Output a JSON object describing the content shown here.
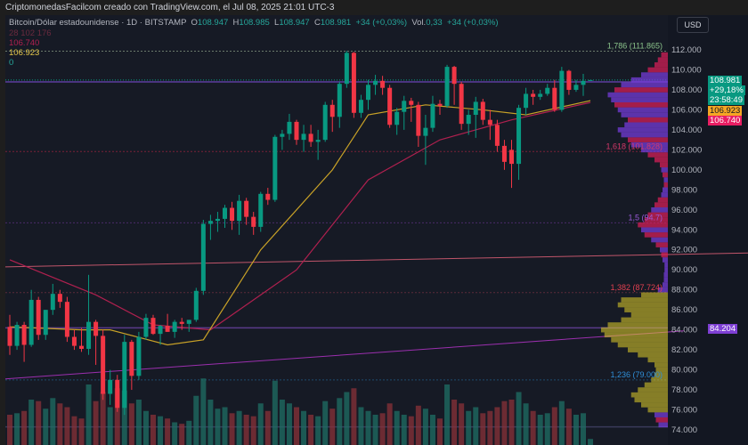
{
  "header": {
    "title": "CriptomonedasFacilcom creado con TradingView.com, el Jul 08, 2025 21:01 UTC-3"
  },
  "legend": {
    "symbol": "Bitcoin/Dólar estadounidense · 1D · BITSTAMP",
    "o_label": "O",
    "o": "108.947",
    "h_label": "H",
    "h": "108.985",
    "l_label": "L",
    "l": "108.947",
    "c_label": "C",
    "c": "108.981",
    "change": "+34 (+0,03%)",
    "vol_label": "Vol.",
    "vol": "0,33",
    "vol_change": "+34 (+0,03%)",
    "ind1": "28  102  176",
    "ma_long_value": "106.740",
    "ma_short_value": "106.923",
    "ind_zero": "0"
  },
  "currency_button": "USD",
  "price_tags": {
    "last": "108.981",
    "change_pct": "+29,18%",
    "countdown": "23:58:49",
    "ma_short": "106.923",
    "ma_long": "106.740",
    "poc": "84.204"
  },
  "colors": {
    "bg": "#161a25",
    "up": "#089981",
    "down": "#f23645",
    "ma_short": "#c9a227",
    "ma_long": "#b0204f",
    "poc": "#7e3fd4",
    "profile_upper": "#7b3fe4",
    "profile_upper_alt": "#e0205a",
    "profile_lower": "#e3d22a"
  },
  "chart_data": {
    "type": "candlestick",
    "title": "",
    "ylim": [
      74,
      112
    ],
    "yticks": [
      "112.000",
      "110.000",
      "108.000",
      "106.000",
      "104.000",
      "102.000",
      "100.000",
      "98.000",
      "96.000",
      "94.000",
      "92.000",
      "90.000",
      "88.000",
      "86.000",
      "84.000",
      "82.000",
      "80.000",
      "78.000",
      "76.000",
      "74.000"
    ],
    "ohlcv": [
      [
        84.3,
        85.5,
        81.5,
        82.4,
        40
      ],
      [
        82.4,
        84.8,
        82.0,
        84.5,
        42
      ],
      [
        84.5,
        84.8,
        80.8,
        82.5,
        45
      ],
      [
        82.5,
        88.0,
        82.3,
        87.0,
        60
      ],
      [
        87.0,
        87.3,
        83.0,
        83.5,
        58
      ],
      [
        83.5,
        86.0,
        83.0,
        86.0,
        48
      ],
      [
        86.0,
        88.6,
        85.5,
        87.6,
        62
      ],
      [
        87.6,
        88.0,
        86.2,
        86.8,
        55
      ],
      [
        86.8,
        87.3,
        82.8,
        83.3,
        50
      ],
      [
        83.3,
        84.0,
        82.0,
        82.4,
        38
      ],
      [
        82.4,
        84.2,
        81.8,
        82.1,
        35
      ],
      [
        82.1,
        89.5,
        81.5,
        84.8,
        80
      ],
      [
        84.8,
        85.0,
        80.5,
        83.4,
        58
      ],
      [
        83.4,
        84.0,
        77.0,
        77.6,
        70
      ],
      [
        77.6,
        80.0,
        76.5,
        79.0,
        50
      ],
      [
        79.0,
        79.5,
        75.8,
        76.2,
        75
      ],
      [
        76.2,
        83.5,
        75.5,
        82.8,
        72
      ],
      [
        82.8,
        83.0,
        78.0,
        79.4,
        55
      ],
      [
        79.4,
        83.8,
        79.0,
        83.3,
        60
      ],
      [
        83.3,
        85.6,
        83.0,
        85.2,
        45
      ],
      [
        85.2,
        85.5,
        83.5,
        83.6,
        40
      ],
      [
        83.6,
        84.5,
        82.5,
        84.4,
        38
      ],
      [
        84.4,
        85.6,
        83.8,
        83.8,
        35
      ],
      [
        83.8,
        85.0,
        83.2,
        84.8,
        30
      ],
      [
        84.8,
        85.2,
        84.0,
        84.6,
        28
      ],
      [
        84.6,
        85.0,
        83.8,
        85.0,
        32
      ],
      [
        85.0,
        88.2,
        84.8,
        87.9,
        65
      ],
      [
        87.9,
        95.0,
        87.5,
        94.6,
        88
      ],
      [
        94.6,
        95.5,
        93.0,
        94.9,
        60
      ],
      [
        94.9,
        95.8,
        93.8,
        95.1,
        48
      ],
      [
        95.1,
        96.5,
        94.2,
        96.2,
        50
      ],
      [
        96.2,
        96.8,
        94.0,
        94.9,
        42
      ],
      [
        94.9,
        97.5,
        93.5,
        96.9,
        45
      ],
      [
        96.9,
        97.2,
        94.5,
        95.3,
        40
      ],
      [
        95.3,
        95.8,
        93.5,
        94.3,
        38
      ],
      [
        94.3,
        97.8,
        93.8,
        97.6,
        55
      ],
      [
        97.6,
        98.2,
        96.5,
        97.0,
        45
      ],
      [
        97.0,
        103.5,
        96.8,
        103.3,
        85
      ],
      [
        103.3,
        104.0,
        102.0,
        103.6,
        60
      ],
      [
        103.6,
        105.6,
        103.0,
        104.8,
        55
      ],
      [
        104.8,
        105.0,
        102.5,
        103.0,
        50
      ],
      [
        103.0,
        104.5,
        101.8,
        103.6,
        45
      ],
      [
        103.6,
        104.5,
        102.3,
        102.8,
        40
      ],
      [
        102.8,
        104.0,
        101.0,
        103.0,
        38
      ],
      [
        103.0,
        106.8,
        102.8,
        106.5,
        58
      ],
      [
        106.5,
        107.0,
        103.8,
        105.3,
        48
      ],
      [
        105.3,
        108.8,
        104.2,
        108.6,
        62
      ],
      [
        108.6,
        111.9,
        108.2,
        111.7,
        70
      ],
      [
        111.7,
        111.8,
        105.2,
        105.7,
        75
      ],
      [
        105.7,
        107.5,
        105.2,
        107.0,
        50
      ],
      [
        107.0,
        109.0,
        106.0,
        108.5,
        45
      ],
      [
        108.5,
        109.5,
        107.5,
        108.9,
        40
      ],
      [
        108.9,
        109.4,
        107.5,
        108.2,
        42
      ],
      [
        108.2,
        108.5,
        104.2,
        104.5,
        55
      ],
      [
        104.5,
        106.2,
        103.5,
        105.8,
        45
      ],
      [
        105.8,
        107.4,
        104.0,
        106.9,
        40
      ],
      [
        106.9,
        107.2,
        104.8,
        106.5,
        38
      ],
      [
        106.5,
        106.8,
        102.3,
        103.4,
        52
      ],
      [
        103.4,
        105.5,
        100.5,
        104.2,
        48
      ],
      [
        104.2,
        107.4,
        103.8,
        106.6,
        40
      ],
      [
        106.6,
        107.0,
        105.5,
        106.4,
        35
      ],
      [
        106.4,
        110.5,
        106.2,
        110.3,
        80
      ],
      [
        110.3,
        110.4,
        106.5,
        108.6,
        60
      ],
      [
        108.6,
        108.8,
        104.0,
        104.6,
        55
      ],
      [
        104.6,
        106.0,
        103.5,
        105.5,
        45
      ],
      [
        105.5,
        107.3,
        103.2,
        106.8,
        50
      ],
      [
        106.8,
        107.1,
        104.5,
        105.0,
        42
      ],
      [
        105.0,
        106.0,
        103.0,
        104.5,
        45
      ],
      [
        104.5,
        105.0,
        101.8,
        102.4,
        50
      ],
      [
        102.4,
        103.0,
        100.0,
        100.8,
        58
      ],
      [
        102.0,
        103.0,
        98.2,
        100.6,
        60
      ],
      [
        100.6,
        106.5,
        99.0,
        106.2,
        70
      ],
      [
        106.2,
        108.2,
        105.5,
        107.6,
        55
      ],
      [
        107.6,
        108.0,
        106.5,
        107.3,
        45
      ],
      [
        107.3,
        108.0,
        107.0,
        107.6,
        40
      ],
      [
        107.6,
        108.6,
        107.4,
        108.2,
        42
      ],
      [
        108.2,
        109.0,
        105.8,
        106.0,
        50
      ],
      [
        106.0,
        110.3,
        105.8,
        109.9,
        58
      ],
      [
        109.9,
        110.0,
        107.5,
        108.0,
        48
      ],
      [
        108.0,
        109.0,
        107.8,
        108.5,
        40
      ],
      [
        108.5,
        109.6,
        107.4,
        108.9,
        42
      ],
      [
        108.947,
        108.985,
        108.947,
        108.981,
        8
      ]
    ],
    "ma_short": [
      [
        0,
        84.3
      ],
      [
        10,
        84.0
      ],
      [
        14,
        84.0
      ],
      [
        22,
        82.5
      ],
      [
        27,
        83.0
      ],
      [
        35,
        92.0
      ],
      [
        45,
        100.0
      ],
      [
        50,
        105.5
      ],
      [
        58,
        106.5
      ],
      [
        66,
        106.0
      ],
      [
        72,
        105.5
      ],
      [
        81,
        106.923
      ]
    ],
    "ma_long": [
      [
        0,
        91.0
      ],
      [
        12,
        87.5
      ],
      [
        20,
        84.5
      ],
      [
        28,
        84.0
      ],
      [
        40,
        90.0
      ],
      [
        50,
        99.0
      ],
      [
        60,
        103.0
      ],
      [
        70,
        105.0
      ],
      [
        81,
        106.74
      ]
    ],
    "hlines": [
      {
        "price": 111.865,
        "label": "1,786 (111.865)",
        "color": "#6b7a6b",
        "labelColor": "#8bc48b"
      },
      {
        "price": 108.8,
        "label": "",
        "color": "#5b3c9e",
        "labelColor": ""
      },
      {
        "price": 101.828,
        "label": "1,618 (101.828)",
        "color": "#7a2038",
        "labelColor": "#d6386a"
      },
      {
        "price": 94.7,
        "label": "1,5 (94.7)",
        "color": "#4a2a6a",
        "labelColor": "#9a5ad8"
      },
      {
        "price": 87.724,
        "label": "1,382 (87.724)",
        "color": "#5a2a3a",
        "labelColor": "#e04050"
      },
      {
        "price": 84.204,
        "label": "",
        "color": "#5a3a8a",
        "labelColor": ""
      },
      {
        "price": 79.0,
        "label": "1,236 (79.000)",
        "color": "#1f4a6e",
        "labelColor": "#2f8fd8"
      },
      {
        "price": 74.3,
        "label": "",
        "color": "#3a3a5a",
        "labelColor": ""
      }
    ],
    "trendlines": [
      {
        "from": [
          0,
          90.3
        ],
        "to": [
          104,
          91.7
        ],
        "color": "#c0556a"
      },
      {
        "from": [
          0,
          79.1
        ],
        "to": [
          94,
          83.9
        ],
        "color": "#9b2fae"
      }
    ],
    "volume_profile": [
      [
        74.5,
        14,
        "u"
      ],
      [
        75.0,
        18,
        "r"
      ],
      [
        75.5,
        20,
        "u"
      ],
      [
        76.0,
        30,
        "l"
      ],
      [
        76.5,
        40,
        "l"
      ],
      [
        77.0,
        50,
        "l"
      ],
      [
        77.5,
        55,
        "l"
      ],
      [
        78.0,
        45,
        "l"
      ],
      [
        78.5,
        35,
        "l"
      ],
      [
        79.0,
        25,
        "l"
      ],
      [
        79.5,
        20,
        "l"
      ],
      [
        80.0,
        18,
        "l"
      ],
      [
        80.5,
        20,
        "l"
      ],
      [
        81.0,
        30,
        "l"
      ],
      [
        81.5,
        45,
        "l"
      ],
      [
        82.0,
        60,
        "l"
      ],
      [
        82.5,
        75,
        "l"
      ],
      [
        83.0,
        85,
        "l"
      ],
      [
        83.5,
        95,
        "l"
      ],
      [
        84.0,
        100,
        "l"
      ],
      [
        84.5,
        90,
        "l"
      ],
      [
        85.0,
        70,
        "l"
      ],
      [
        85.5,
        55,
        "l"
      ],
      [
        86.0,
        65,
        "l"
      ],
      [
        86.5,
        75,
        "l"
      ],
      [
        87.0,
        70,
        "l"
      ],
      [
        87.5,
        40,
        "l"
      ],
      [
        88.0,
        15,
        "u"
      ],
      [
        88.5,
        8,
        "u"
      ],
      [
        89.0,
        6,
        "u"
      ],
      [
        89.5,
        6,
        "u"
      ],
      [
        90.0,
        5,
        "u"
      ],
      [
        90.5,
        5,
        "u"
      ],
      [
        91.0,
        8,
        "u"
      ],
      [
        91.5,
        10,
        "r"
      ],
      [
        92.0,
        12,
        "u"
      ],
      [
        92.5,
        18,
        "r"
      ],
      [
        93.0,
        25,
        "u"
      ],
      [
        93.5,
        35,
        "r"
      ],
      [
        94.0,
        40,
        "u"
      ],
      [
        94.5,
        45,
        "r"
      ],
      [
        95.0,
        35,
        "r"
      ],
      [
        95.5,
        30,
        "r"
      ],
      [
        96.0,
        25,
        "u"
      ],
      [
        96.5,
        20,
        "r"
      ],
      [
        97.0,
        15,
        "r"
      ],
      [
        97.5,
        10,
        "u"
      ],
      [
        98.0,
        8,
        "u"
      ],
      [
        98.5,
        6,
        "r"
      ],
      [
        99.0,
        6,
        "u"
      ],
      [
        99.5,
        8,
        "r"
      ],
      [
        100.0,
        10,
        "u"
      ],
      [
        100.5,
        12,
        "r"
      ],
      [
        101.0,
        20,
        "r"
      ],
      [
        101.5,
        30,
        "r"
      ],
      [
        102.0,
        40,
        "u"
      ],
      [
        102.5,
        55,
        "u"
      ],
      [
        103.0,
        60,
        "r"
      ],
      [
        103.5,
        70,
        "u"
      ],
      [
        104.0,
        75,
        "u"
      ],
      [
        104.5,
        65,
        "u"
      ],
      [
        105.0,
        60,
        "r"
      ],
      [
        105.5,
        70,
        "u"
      ],
      [
        106.0,
        75,
        "u"
      ],
      [
        106.5,
        80,
        "r"
      ],
      [
        107.0,
        85,
        "u"
      ],
      [
        107.5,
        90,
        "u"
      ],
      [
        108.0,
        80,
        "r"
      ],
      [
        108.5,
        70,
        "u"
      ],
      [
        109.0,
        55,
        "u"
      ],
      [
        109.5,
        40,
        "u"
      ],
      [
        110.0,
        30,
        "r"
      ],
      [
        110.5,
        20,
        "r"
      ],
      [
        111.0,
        15,
        "r"
      ],
      [
        111.5,
        10,
        "r"
      ]
    ]
  }
}
